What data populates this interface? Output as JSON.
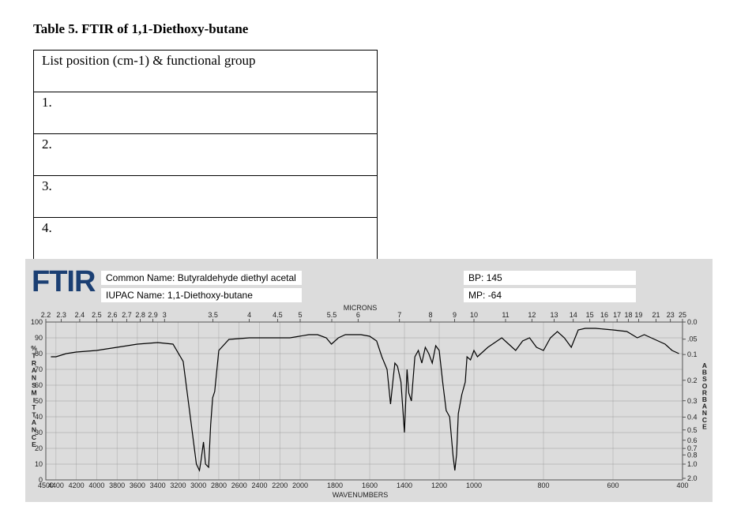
{
  "document": {
    "title": "Table 5. FTIR of 1,1-Diethoxy-butane",
    "table_rows": [
      "List position (cm-1) & functional group",
      "1.",
      "2.",
      "3.",
      "4."
    ]
  },
  "ftir": {
    "logo": "FTIR",
    "common_name_label": "Common Name:",
    "common_name": "Butyraldehyde diethyl acetal",
    "iupac_label": "IUPAC Name:",
    "iupac_name": "1,1-Diethoxy-butane",
    "bp_label": "BP:",
    "bp": "145",
    "mp_label": "MP:",
    "mp": "-64",
    "top_axis_title": "MICRONS",
    "bottom_axis_title": "WAVENUMBERS",
    "left_axis_title": "% TRANSMITTANCE",
    "right_axis_title": "ABSORBANCE",
    "bottom_ticks": [
      "4500",
      "4400",
      "4200",
      "4000",
      "3800",
      "3600",
      "3400",
      "3200",
      "3000",
      "2800",
      "2600",
      "2400",
      "2200",
      "2000",
      "1800",
      "1600",
      "1400",
      "1200",
      "1000",
      "800",
      "600",
      "400"
    ],
    "top_ticks": [
      "2.2",
      "2.3",
      "2.4",
      "2.5",
      "2.6",
      "2.7",
      "2.8",
      "2.9",
      "3",
      "3.5",
      "4",
      "4.5",
      "5",
      "5.5",
      "6",
      "7",
      "8",
      "9",
      "10",
      "11",
      "12",
      "13",
      "14",
      "15",
      "16",
      "17",
      "18",
      "19",
      "21",
      "23",
      "25"
    ],
    "left_ticks": [
      "100",
      "90",
      "80",
      "70",
      "60",
      "50",
      "40",
      "30",
      "20",
      "10",
      "0"
    ],
    "right_ticks": [
      "0.0",
      ".05",
      "0.1",
      "0.2",
      "0.3",
      "0.4",
      "0.5",
      "0.6",
      "0.7",
      "0.8",
      "1.0",
      "2.0"
    ],
    "line_color": "#000000",
    "grid_color": "#9a9a9a"
  },
  "chart_data": {
    "type": "line",
    "title": "",
    "xlabel": "WAVENUMBERS",
    "ylabel": "% TRANSMITTANCE",
    "xlim": [
      4500,
      400
    ],
    "ylim": [
      0,
      100
    ],
    "grid": true,
    "series": [
      {
        "values_xy": [
          [
            4450,
            78
          ],
          [
            4400,
            78
          ],
          [
            4300,
            80
          ],
          [
            4200,
            81
          ],
          [
            4000,
            82
          ],
          [
            3800,
            84
          ],
          [
            3600,
            86
          ],
          [
            3400,
            87
          ],
          [
            3250,
            86
          ],
          [
            3150,
            75
          ],
          [
            3080,
            40
          ],
          [
            3020,
            10
          ],
          [
            2990,
            6
          ],
          [
            2975,
            12
          ],
          [
            2950,
            24
          ],
          [
            2930,
            10
          ],
          [
            2900,
            8
          ],
          [
            2880,
            35
          ],
          [
            2860,
            52
          ],
          [
            2840,
            56
          ],
          [
            2800,
            82
          ],
          [
            2700,
            89
          ],
          [
            2500,
            90
          ],
          [
            2300,
            90
          ],
          [
            2100,
            90
          ],
          [
            1950,
            92
          ],
          [
            1900,
            92
          ],
          [
            1850,
            90
          ],
          [
            1820,
            86
          ],
          [
            1780,
            90
          ],
          [
            1740,
            92
          ],
          [
            1700,
            92
          ],
          [
            1650,
            92
          ],
          [
            1600,
            91
          ],
          [
            1560,
            88
          ],
          [
            1530,
            78
          ],
          [
            1500,
            70
          ],
          [
            1480,
            48
          ],
          [
            1465,
            64
          ],
          [
            1455,
            74
          ],
          [
            1440,
            72
          ],
          [
            1420,
            62
          ],
          [
            1400,
            30
          ],
          [
            1385,
            70
          ],
          [
            1375,
            55
          ],
          [
            1360,
            50
          ],
          [
            1340,
            78
          ],
          [
            1320,
            82
          ],
          [
            1300,
            74
          ],
          [
            1280,
            84
          ],
          [
            1260,
            80
          ],
          [
            1240,
            74
          ],
          [
            1220,
            85
          ],
          [
            1200,
            82
          ],
          [
            1180,
            62
          ],
          [
            1160,
            44
          ],
          [
            1140,
            40
          ],
          [
            1120,
            15
          ],
          [
            1110,
            6
          ],
          [
            1100,
            16
          ],
          [
            1090,
            42
          ],
          [
            1070,
            54
          ],
          [
            1050,
            62
          ],
          [
            1040,
            78
          ],
          [
            1020,
            76
          ],
          [
            1000,
            82
          ],
          [
            990,
            78
          ],
          [
            960,
            84
          ],
          [
            920,
            90
          ],
          [
            900,
            86
          ],
          [
            880,
            82
          ],
          [
            860,
            88
          ],
          [
            840,
            90
          ],
          [
            820,
            84
          ],
          [
            800,
            82
          ],
          [
            780,
            90
          ],
          [
            760,
            94
          ],
          [
            740,
            90
          ],
          [
            720,
            84
          ],
          [
            700,
            95
          ],
          [
            680,
            96
          ],
          [
            650,
            96
          ],
          [
            600,
            95
          ],
          [
            560,
            94
          ],
          [
            530,
            90
          ],
          [
            510,
            92
          ],
          [
            490,
            90
          ],
          [
            470,
            88
          ],
          [
            450,
            86
          ],
          [
            430,
            82
          ],
          [
            410,
            80
          ]
        ]
      }
    ]
  }
}
